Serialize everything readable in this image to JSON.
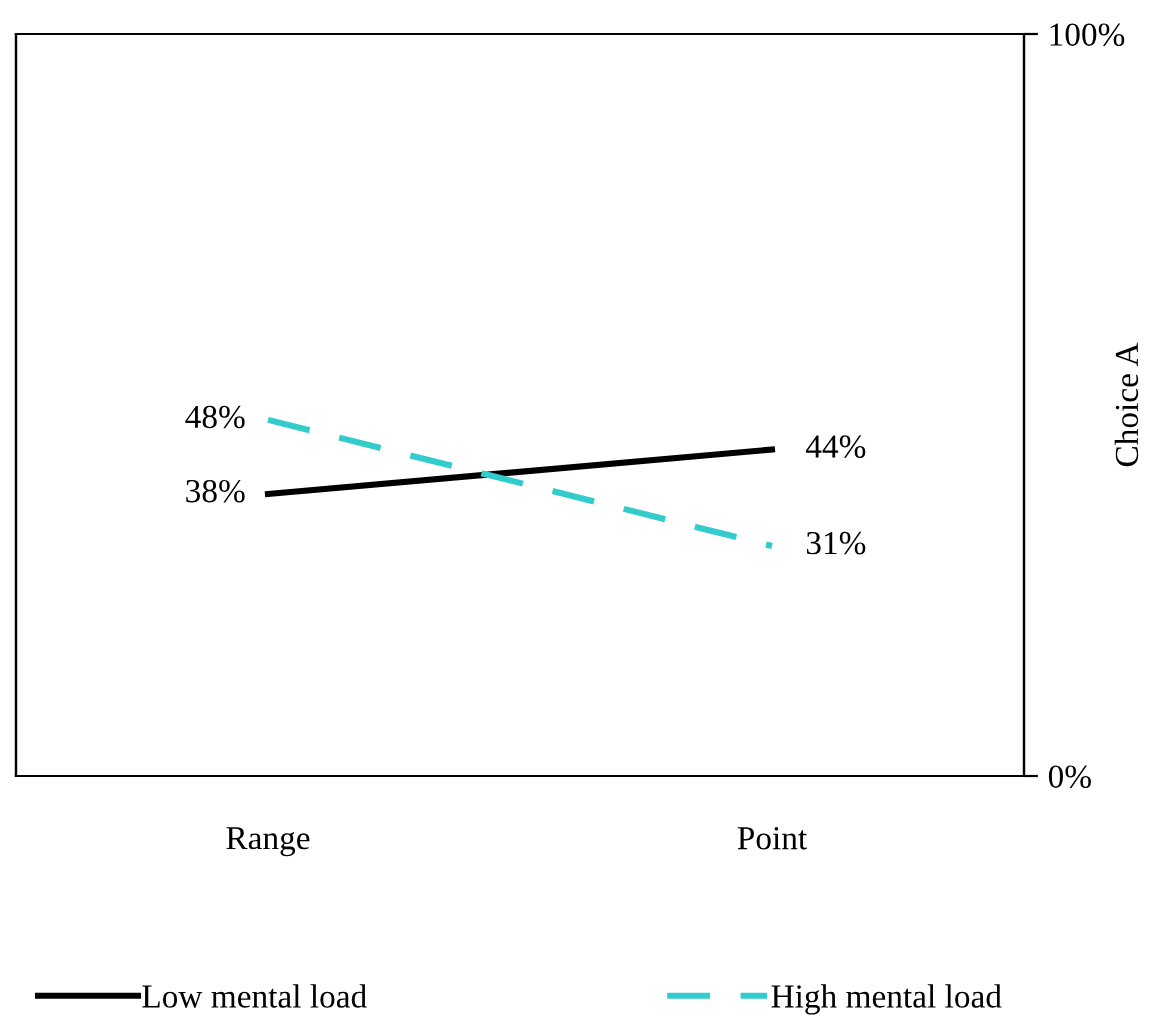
{
  "chart_data": {
    "type": "line",
    "categories": [
      "Range",
      "Point"
    ],
    "y2label": "Choice A",
    "series": [
      {
        "name": "Low mental load",
        "color": "#000000",
        "line_style": "solid",
        "axis": "y2",
        "values": [
          38,
          44
        ],
        "value_labels": [
          "38%",
          "44%"
        ]
      },
      {
        "name": "High mental load",
        "color": "#33cccc",
        "line_style": "dashed",
        "axis": "y2",
        "values": [
          48,
          31
        ],
        "value_labels": [
          "48%",
          "31%"
        ]
      }
    ],
    "y2lim": [
      0,
      100
    ],
    "y2ticks": [
      {
        "value": 0,
        "label": "0%"
      },
      {
        "value": 100,
        "label": "100%"
      }
    ],
    "legend": "bottom",
    "marker": "none"
  }
}
